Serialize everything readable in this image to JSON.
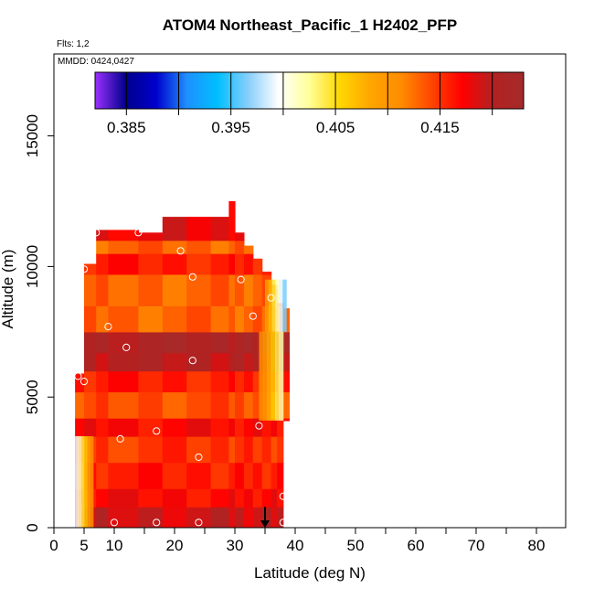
{
  "chart_data": {
    "type": "heatmap",
    "title": "ATOM4 Northeast_Pacific_1 H2402_PFP",
    "flights_note": "Flts: 1,2",
    "date_note": "MMDD: 0424,0427",
    "xlabel": "Latitude (deg N)",
    "ylabel": "Altitude (m)",
    "xlim": [
      0,
      85
    ],
    "ylim": [
      0,
      17500
    ],
    "x_ticks": [
      0,
      5,
      10,
      20,
      30,
      40,
      50,
      60,
      70,
      80
    ],
    "x_minor_ticks": [
      0,
      5,
      10,
      15,
      20,
      25,
      30,
      35,
      40,
      45,
      50,
      55,
      60,
      65,
      70,
      75,
      80,
      85
    ],
    "y_ticks": [
      0,
      5000,
      10000,
      15000
    ],
    "colorbar": {
      "min": 0.382,
      "max": 0.423,
      "tick_values": [
        0.385,
        0.395,
        0.405,
        0.415
      ],
      "tick_labels": [
        "0.385",
        "0.395",
        "0.405",
        "0.415"
      ],
      "stops": [
        "#9B30FF",
        "#00008B",
        "#0000CD",
        "#1E90FF",
        "#00BFFF",
        "#87CEFA",
        "#FFFFFF",
        "#FFFF99",
        "#FFD700",
        "#FFA500",
        "#FF8C00",
        "#FF4500",
        "#FF0000",
        "#B22222",
        "#A52A2A"
      ]
    },
    "curtain": {
      "columns": [
        {
          "lat_from": 3.5,
          "lat_to": 5.0,
          "alt_from": 0,
          "alt_to": 5900
        },
        {
          "lat_from": 5.0,
          "lat_to": 7.0,
          "alt_from": 0,
          "alt_to": 10100
        },
        {
          "lat_from": 7.0,
          "lat_to": 9.0,
          "alt_from": 0,
          "alt_to": 11400
        },
        {
          "lat_from": 9.0,
          "lat_to": 14.0,
          "alt_from": 0,
          "alt_to": 11400
        },
        {
          "lat_from": 14.0,
          "lat_to": 18.0,
          "alt_from": 0,
          "alt_to": 11300
        },
        {
          "lat_from": 18.0,
          "lat_to": 22.0,
          "alt_from": 0,
          "alt_to": 11900
        },
        {
          "lat_from": 22.0,
          "lat_to": 26.0,
          "alt_from": 0,
          "alt_to": 11900
        },
        {
          "lat_from": 26.0,
          "lat_to": 29.0,
          "alt_from": 0,
          "alt_to": 11900
        },
        {
          "lat_from": 29.0,
          "lat_to": 30.0,
          "alt_from": 0,
          "alt_to": 12500
        },
        {
          "lat_from": 30.0,
          "lat_to": 31.5,
          "alt_from": 0,
          "alt_to": 11300
        },
        {
          "lat_from": 31.5,
          "lat_to": 33.0,
          "alt_from": 0,
          "alt_to": 10800
        },
        {
          "lat_from": 33.0,
          "lat_to": 34.5,
          "alt_from": 0,
          "alt_to": 10300
        },
        {
          "lat_from": 34.5,
          "lat_to": 36.0,
          "alt_from": 0,
          "alt_to": 9800
        },
        {
          "lat_from": 36.0,
          "lat_to": 37.0,
          "alt_from": 0,
          "alt_to": 9300
        },
        {
          "lat_from": 37.0,
          "lat_to": 38.0,
          "alt_from": 0,
          "alt_to": 8600
        },
        {
          "lat_from": 38.0,
          "lat_to": 39.0,
          "alt_from": 4100,
          "alt_to": 8400
        }
      ],
      "bands": [
        {
          "alt_from": 0,
          "alt_to": 800,
          "value": 0.419
        },
        {
          "alt_from": 800,
          "alt_to": 1500,
          "value": 0.417
        },
        {
          "alt_from": 1500,
          "alt_to": 2500,
          "value": 0.416
        },
        {
          "alt_from": 2500,
          "alt_to": 3500,
          "value": 0.415
        },
        {
          "alt_from": 3500,
          "alt_to": 4200,
          "value": 0.417
        },
        {
          "alt_from": 4200,
          "alt_to": 5200,
          "value": 0.414
        },
        {
          "alt_from": 5200,
          "alt_to": 6000,
          "value": 0.416
        },
        {
          "alt_from": 6000,
          "alt_to": 6700,
          "value": 0.42
        },
        {
          "alt_from": 6700,
          "alt_to": 7500,
          "value": 0.421
        },
        {
          "alt_from": 7500,
          "alt_to": 8500,
          "value": 0.413
        },
        {
          "alt_from": 8500,
          "alt_to": 9700,
          "value": 0.413
        },
        {
          "alt_from": 9700,
          "alt_to": 10500,
          "value": 0.416
        },
        {
          "alt_from": 10500,
          "alt_to": 11000,
          "value": 0.413
        },
        {
          "alt_from": 11000,
          "alt_to": 12500,
          "value": 0.418
        }
      ],
      "edge_gradients": [
        {
          "lat_from": 3.5,
          "lat_to": 6.5,
          "alt_from": 0,
          "alt_to": 3500,
          "values": [
            0.398,
            0.412
          ]
        },
        {
          "lat_from": 34.0,
          "lat_to": 38.0,
          "alt_from": 4100,
          "alt_to": 7500,
          "values": [
            0.412,
            0.401
          ]
        },
        {
          "lat_from": 35.0,
          "lat_to": 38.5,
          "alt_from": 7500,
          "alt_to": 9500,
          "values": [
            0.411,
            0.395
          ]
        }
      ]
    },
    "samples": [
      {
        "lat": 7.0,
        "alt": 11300
      },
      {
        "lat": 14.0,
        "alt": 11300
      },
      {
        "lat": 21.0,
        "alt": 10600
      },
      {
        "lat": 5.0,
        "alt": 9900
      },
      {
        "lat": 23.0,
        "alt": 9600
      },
      {
        "lat": 31.0,
        "alt": 9500
      },
      {
        "lat": 36.0,
        "alt": 8800
      },
      {
        "lat": 33.0,
        "alt": 8100
      },
      {
        "lat": 9.0,
        "alt": 7700
      },
      {
        "lat": 12.0,
        "alt": 6900
      },
      {
        "lat": 23.0,
        "alt": 6400
      },
      {
        "lat": 4.0,
        "alt": 5800
      },
      {
        "lat": 5.0,
        "alt": 5600
      },
      {
        "lat": 17.0,
        "alt": 3700
      },
      {
        "lat": 34.0,
        "alt": 3900
      },
      {
        "lat": 11.0,
        "alt": 3400
      },
      {
        "lat": 24.0,
        "alt": 2700
      },
      {
        "lat": 38.0,
        "alt": 1200
      },
      {
        "lat": 10.0,
        "alt": 200
      },
      {
        "lat": 17.0,
        "alt": 200
      },
      {
        "lat": 24.0,
        "alt": 200
      },
      {
        "lat": 38.0,
        "alt": 200
      }
    ],
    "arrow": {
      "lat": 35.0,
      "alt_from": 800,
      "alt_to": 0
    },
    "grid": false,
    "legend": "colorbar top"
  }
}
